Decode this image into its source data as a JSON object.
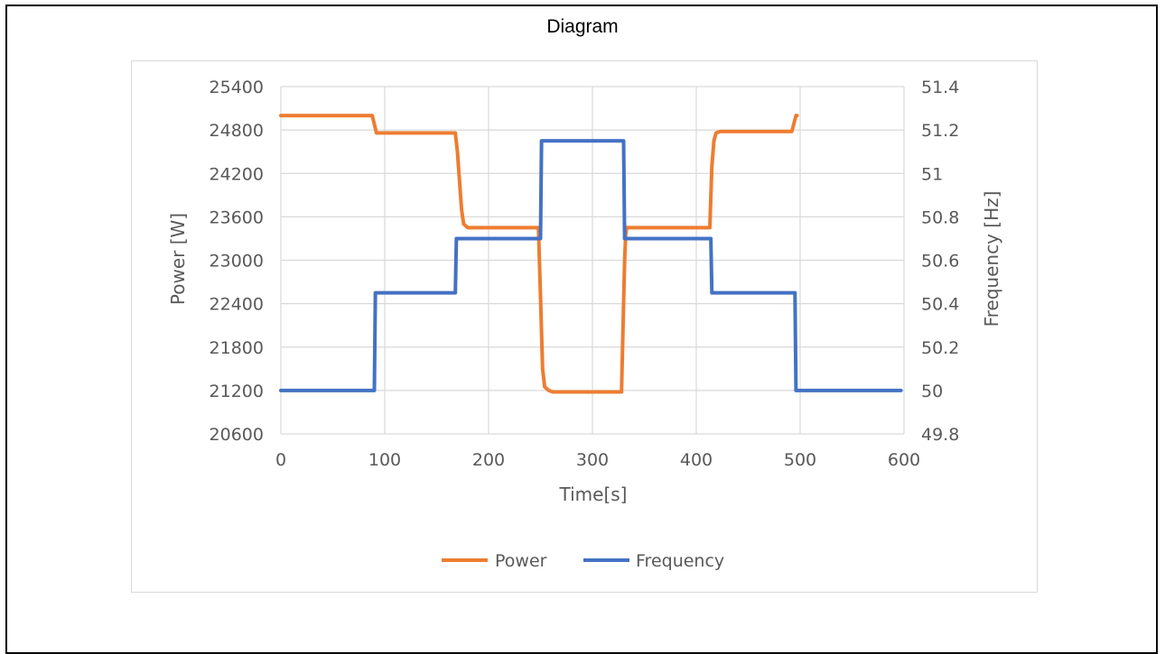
{
  "page": {
    "title": "Diagram"
  },
  "chart_data": {
    "type": "line",
    "title": "",
    "xlabel": "Time[s]",
    "ylabel": "Power [W]",
    "y2label": "Frequency [Hz]",
    "xlim": [
      0,
      600
    ],
    "ylim": [
      20600,
      25400
    ],
    "y2lim": [
      49.8,
      51.4
    ],
    "x_ticks": [
      0,
      100,
      200,
      300,
      400,
      500,
      600
    ],
    "y_ticks": [
      20600,
      21200,
      21800,
      22400,
      23000,
      23600,
      24200,
      24800,
      25400
    ],
    "y2_ticks": [
      "49.8",
      "50",
      "50.2",
      "50.4",
      "50.6",
      "50.8",
      "51",
      "51.2",
      "51.4"
    ],
    "grid": true,
    "legend_position": "bottom",
    "series": [
      {
        "name": "Power",
        "axis": "left",
        "color": "#ED7D31",
        "x": [
          0,
          88,
          92,
          168,
          170,
          174,
          176,
          180,
          248,
          250,
          252,
          254,
          258,
          262,
          328,
          330,
          331,
          332,
          333,
          336,
          413,
          415,
          417,
          419,
          423,
          430,
          492,
          496,
          497
        ],
        "y": [
          25000,
          25000,
          24760,
          24760,
          24500,
          23700,
          23500,
          23450,
          23450,
          22500,
          21500,
          21250,
          21200,
          21180,
          21180,
          22400,
          23000,
          23350,
          23450,
          23450,
          23450,
          24300,
          24650,
          24760,
          24780,
          24780,
          24780,
          25000,
          25000
        ]
      },
      {
        "name": "Frequency",
        "axis": "right",
        "color": "#4472C4",
        "x": [
          0,
          90,
          91,
          168,
          169,
          250,
          251,
          330,
          331,
          414,
          415,
          495,
          496,
          597
        ],
        "y": [
          50.0,
          50.0,
          50.45,
          50.45,
          50.7,
          50.7,
          51.15,
          51.15,
          50.7,
          50.7,
          50.45,
          50.45,
          50.0,
          50.0
        ]
      }
    ]
  }
}
